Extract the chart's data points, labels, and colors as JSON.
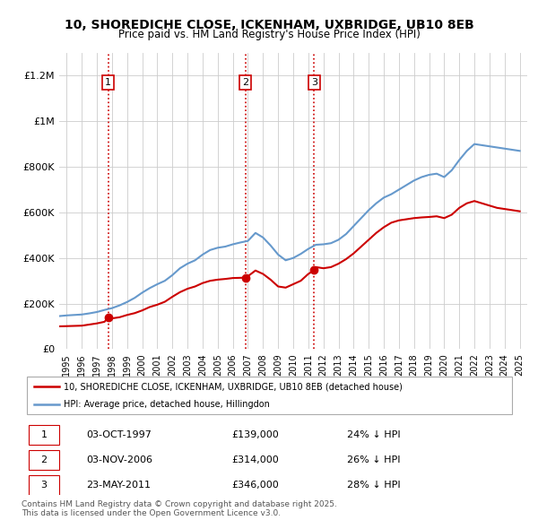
{
  "title_line1": "10, SHOREDICHE CLOSE, ICKENHAM, UXBRIDGE, UB10 8EB",
  "title_line2": "Price paid vs. HM Land Registry's House Price Index (HPI)",
  "legend_label_red": "10, SHOREDICHE CLOSE, ICKENHAM, UXBRIDGE, UB10 8EB (detached house)",
  "legend_label_blue": "HPI: Average price, detached house, Hillingdon",
  "footer_line1": "Contains HM Land Registry data © Crown copyright and database right 2025.",
  "footer_line2": "This data is licensed under the Open Government Licence v3.0.",
  "transactions": [
    {
      "num": 1,
      "date": "03-OCT-1997",
      "price": 139000,
      "pct": "24%",
      "direction": "↓"
    },
    {
      "num": 2,
      "date": "03-NOV-2006",
      "price": 314000,
      "pct": "26%",
      "direction": "↓"
    },
    {
      "num": 3,
      "date": "23-MAY-2011",
      "price": 346000,
      "pct": "28%",
      "direction": "↓"
    }
  ],
  "sale_dates_year": [
    1997.75,
    2006.83,
    2011.38
  ],
  "sale_prices": [
    139000,
    314000,
    346000
  ],
  "red_color": "#cc0000",
  "blue_color": "#6699cc",
  "dashed_color": "#cc0000",
  "background_color": "#ffffff",
  "grid_color": "#cccccc",
  "ylim": [
    0,
    1300000
  ],
  "xlim_start": 1994.5,
  "xlim_end": 2025.5,
  "red_x": [
    1994.5,
    1995.0,
    1995.5,
    1996.0,
    1996.5,
    1997.0,
    1997.5,
    1997.75,
    1998.0,
    1998.5,
    1999.0,
    1999.5,
    2000.0,
    2000.5,
    2001.0,
    2001.5,
    2002.0,
    2002.5,
    2003.0,
    2003.5,
    2004.0,
    2004.5,
    2005.0,
    2005.5,
    2006.0,
    2006.5,
    2006.83,
    2007.0,
    2007.5,
    2008.0,
    2008.5,
    2009.0,
    2009.5,
    2010.0,
    2010.5,
    2011.0,
    2011.38,
    2011.5,
    2012.0,
    2012.5,
    2013.0,
    2013.5,
    2014.0,
    2014.5,
    2015.0,
    2015.5,
    2016.0,
    2016.5,
    2017.0,
    2017.5,
    2018.0,
    2018.5,
    2019.0,
    2019.5,
    2020.0,
    2020.5,
    2021.0,
    2021.5,
    2022.0,
    2022.5,
    2023.0,
    2023.5,
    2024.0,
    2024.5,
    2025.0
  ],
  "red_y": [
    100000,
    101000,
    102000,
    103000,
    108000,
    113000,
    120000,
    139000,
    135000,
    140000,
    150000,
    158000,
    170000,
    185000,
    195000,
    208000,
    230000,
    250000,
    265000,
    275000,
    290000,
    300000,
    305000,
    308000,
    312000,
    313000,
    314000,
    320000,
    345000,
    330000,
    305000,
    275000,
    270000,
    285000,
    300000,
    330000,
    346000,
    360000,
    355000,
    360000,
    375000,
    395000,
    420000,
    450000,
    480000,
    510000,
    535000,
    555000,
    565000,
    570000,
    575000,
    578000,
    580000,
    583000,
    575000,
    590000,
    620000,
    640000,
    650000,
    640000,
    630000,
    620000,
    615000,
    610000,
    605000
  ],
  "blue_x": [
    1994.5,
    1995.0,
    1995.5,
    1996.0,
    1996.5,
    1997.0,
    1997.5,
    1998.0,
    1998.5,
    1999.0,
    1999.5,
    2000.0,
    2000.5,
    2001.0,
    2001.5,
    2002.0,
    2002.5,
    2003.0,
    2003.5,
    2004.0,
    2004.5,
    2005.0,
    2005.5,
    2006.0,
    2006.5,
    2007.0,
    2007.5,
    2008.0,
    2008.5,
    2009.0,
    2009.5,
    2010.0,
    2010.5,
    2011.0,
    2011.5,
    2012.0,
    2012.5,
    2013.0,
    2013.5,
    2014.0,
    2014.5,
    2015.0,
    2015.5,
    2016.0,
    2016.5,
    2017.0,
    2017.5,
    2018.0,
    2018.5,
    2019.0,
    2019.5,
    2020.0,
    2020.5,
    2021.0,
    2021.5,
    2022.0,
    2022.5,
    2023.0,
    2023.5,
    2024.0,
    2024.5,
    2025.0
  ],
  "blue_y": [
    145000,
    148000,
    150000,
    152000,
    157000,
    163000,
    172000,
    180000,
    192000,
    207000,
    225000,
    248000,
    268000,
    285000,
    300000,
    325000,
    355000,
    375000,
    390000,
    415000,
    435000,
    445000,
    450000,
    460000,
    468000,
    475000,
    510000,
    490000,
    455000,
    415000,
    390000,
    400000,
    418000,
    440000,
    458000,
    460000,
    465000,
    480000,
    505000,
    540000,
    575000,
    610000,
    640000,
    665000,
    680000,
    700000,
    720000,
    740000,
    755000,
    765000,
    770000,
    755000,
    785000,
    830000,
    870000,
    900000,
    895000,
    890000,
    885000,
    880000,
    875000,
    870000
  ]
}
